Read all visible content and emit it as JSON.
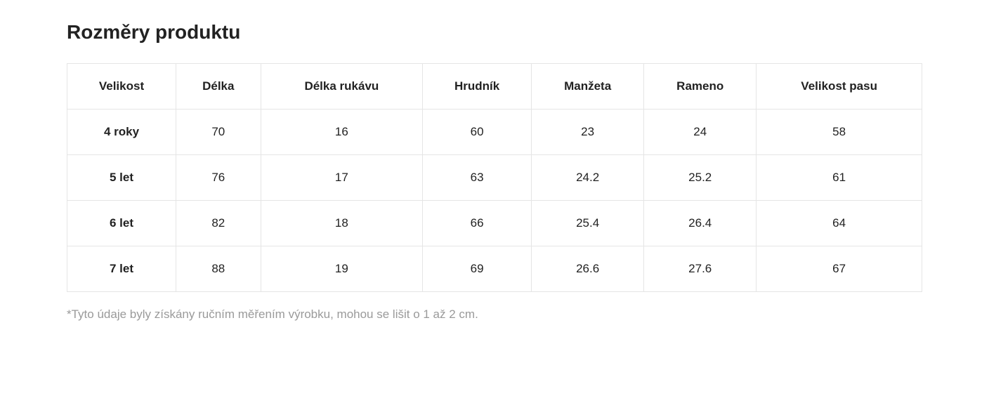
{
  "title": "Rozměry produktu",
  "table": {
    "columns": [
      "Velikost",
      "Délka",
      "Délka rukávu",
      "Hrudník",
      "Manžeta",
      "Rameno",
      "Velikost pasu"
    ],
    "rows": [
      {
        "label": "4 roky",
        "values": [
          "70",
          "16",
          "60",
          "23",
          "24",
          "58"
        ]
      },
      {
        "label": "5 let",
        "values": [
          "76",
          "17",
          "63",
          "24.2",
          "25.2",
          "61"
        ]
      },
      {
        "label": "6 let",
        "values": [
          "82",
          "18",
          "66",
          "25.4",
          "26.4",
          "64"
        ]
      },
      {
        "label": "7 let",
        "values": [
          "88",
          "19",
          "69",
          "26.6",
          "27.6",
          "67"
        ]
      }
    ],
    "border_color": "#e5e5e5",
    "background_color": "#ffffff",
    "header_fontsize": 17,
    "cell_fontsize": 17,
    "text_color": "#222222"
  },
  "footnote": "*Tyto údaje byly získány ručním měřením výrobku, mohou se lišit o 1 až 2 cm.",
  "footnote_color": "#9a9a9a",
  "title_fontsize": 28
}
